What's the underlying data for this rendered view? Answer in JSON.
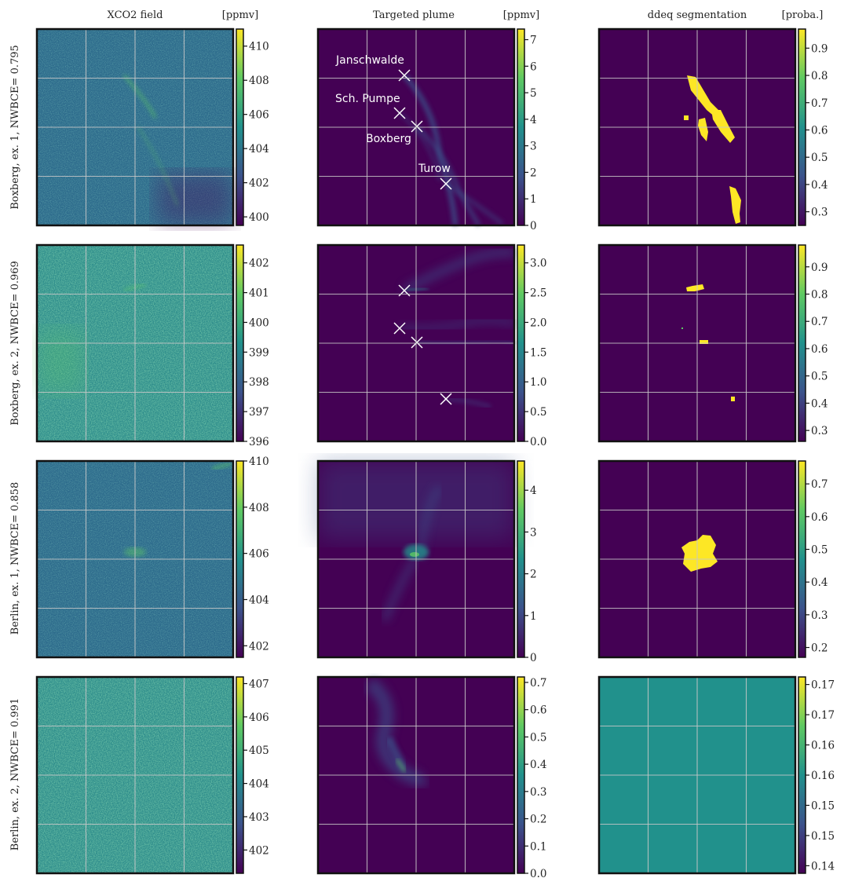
{
  "columns": [
    {
      "title": "XCO2 field",
      "unit": "[ppmv]"
    },
    {
      "title": "Targeted plume",
      "unit": "[ppmv]"
    },
    {
      "title": "ddeq segmentation",
      "unit": "[proba.]"
    }
  ],
  "rows": [
    {
      "label": "Boxberg, ex. 1, NWBCE= 0.795"
    },
    {
      "label": "Boxberg, ex. 2, NWBCE= 0.969"
    },
    {
      "label": "Berlin, ex. 1, NWBCE= 0.858"
    },
    {
      "label": "Berlin, ex. 2, NWBCE= 0.991"
    }
  ],
  "source_labels": [
    "Janschwalde",
    "Sch. Pumpe",
    "Boxberg",
    "Turow"
  ],
  "colors": {
    "viridis": [
      "#440154",
      "#3b528b",
      "#21918c",
      "#5ec962",
      "#fde725"
    ],
    "background_field": "#2e6a8e",
    "plume_background": "#440154",
    "segmentation_background": "#440154",
    "segmentation_flat": "#21918c",
    "grid": "#c8c8c8"
  },
  "chart_data": [
    {
      "type": "heatmap",
      "row": 0,
      "col": 0,
      "colorbar_ticks": [
        "410",
        "408",
        "406",
        "404",
        "402",
        "400"
      ],
      "range": [
        399.5,
        411
      ]
    },
    {
      "type": "heatmap",
      "row": 0,
      "col": 1,
      "colorbar_ticks": [
        "7",
        "6",
        "5",
        "4",
        "3",
        "2",
        "1",
        "0"
      ],
      "range": [
        0,
        7.4
      ]
    },
    {
      "type": "heatmap",
      "row": 0,
      "col": 2,
      "colorbar_ticks": [
        "0.9",
        "0.8",
        "0.7",
        "0.6",
        "0.5",
        "0.4",
        "0.3"
      ],
      "range": [
        0.25,
        0.97
      ]
    },
    {
      "type": "heatmap",
      "row": 1,
      "col": 0,
      "colorbar_ticks": [
        "402",
        "401",
        "400",
        "399",
        "398",
        "397",
        "396"
      ],
      "range": [
        396,
        402.6
      ]
    },
    {
      "type": "heatmap",
      "row": 1,
      "col": 1,
      "colorbar_ticks": [
        "3.0",
        "2.5",
        "2.0",
        "1.5",
        "1.0",
        "0.5",
        "0.0"
      ],
      "range": [
        0,
        3.3
      ]
    },
    {
      "type": "heatmap",
      "row": 1,
      "col": 2,
      "colorbar_ticks": [
        "0.9",
        "0.8",
        "0.7",
        "0.6",
        "0.5",
        "0.4",
        "0.3"
      ],
      "range": [
        0.26,
        0.98
      ]
    },
    {
      "type": "heatmap",
      "row": 2,
      "col": 0,
      "colorbar_ticks": [
        "410",
        "408",
        "406",
        "404",
        "402"
      ],
      "range": [
        401.5,
        410
      ]
    },
    {
      "type": "heatmap",
      "row": 2,
      "col": 1,
      "colorbar_ticks": [
        "4",
        "3",
        "2",
        "1",
        "0"
      ],
      "range": [
        0,
        4.7
      ]
    },
    {
      "type": "heatmap",
      "row": 2,
      "col": 2,
      "colorbar_ticks": [
        "0.7",
        "0.6",
        "0.5",
        "0.4",
        "0.3",
        "0.2"
      ],
      "range": [
        0.17,
        0.77
      ]
    },
    {
      "type": "heatmap",
      "row": 3,
      "col": 0,
      "colorbar_ticks": [
        "407",
        "406",
        "405",
        "404",
        "403",
        "402"
      ],
      "range": [
        401.3,
        407.2
      ]
    },
    {
      "type": "heatmap",
      "row": 3,
      "col": 1,
      "colorbar_ticks": [
        "0.7",
        "0.6",
        "0.5",
        "0.4",
        "0.3",
        "0.2",
        "0.1",
        "0.0"
      ],
      "range": [
        0,
        0.72
      ]
    },
    {
      "type": "heatmap",
      "row": 3,
      "col": 2,
      "colorbar_ticks": [
        "0.17",
        "0.17",
        "0.16",
        "0.16",
        "0.15",
        "0.15",
        "0.14"
      ],
      "range": [
        0.14,
        0.175
      ]
    }
  ]
}
